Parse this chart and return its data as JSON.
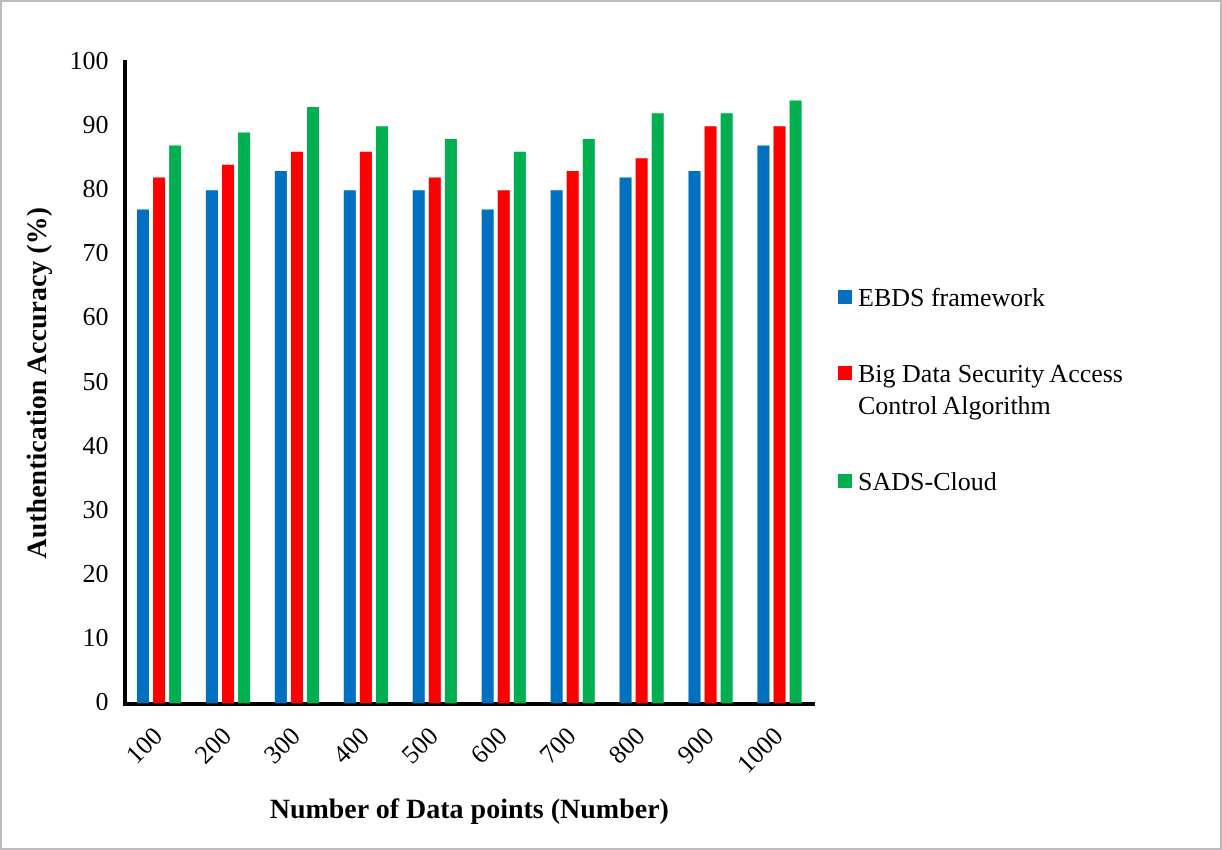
{
  "chart_data": {
    "type": "bar",
    "xlabel": "Number of Data points (Number)",
    "ylabel": "Authentication Accuracy (%)",
    "categories": [
      "100",
      "200",
      "300",
      "400",
      "500",
      "600",
      "700",
      "800",
      "900",
      "1000"
    ],
    "series": [
      {
        "name": "EBDS framework",
        "color": "#0070c0",
        "values": [
          77,
          80,
          83,
          80,
          80,
          77,
          80,
          82,
          83,
          87
        ]
      },
      {
        "name": "Big Data Security Access Control Algorithm",
        "color": "#ff0000",
        "values": [
          82,
          84,
          86,
          86,
          82,
          80,
          83,
          85,
          90,
          90
        ]
      },
      {
        "name": "SADS-Cloud",
        "color": "#00b050",
        "values": [
          87,
          89,
          93,
          90,
          88,
          86,
          88,
          92,
          92,
          94
        ]
      }
    ],
    "ylim": [
      0,
      100
    ],
    "yticks": [
      0,
      10,
      20,
      30,
      40,
      50,
      60,
      70,
      80,
      90,
      100
    ],
    "grid": false,
    "legend": "right"
  }
}
